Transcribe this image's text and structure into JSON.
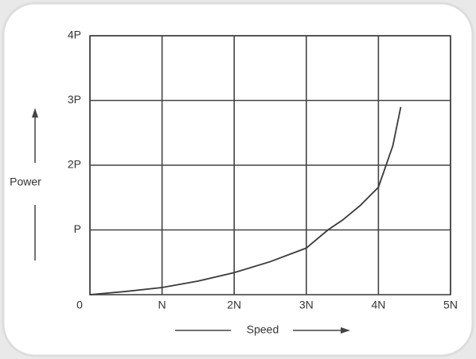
{
  "chart_data": {
    "type": "line",
    "x_label": "Speed",
    "y_label": "Power",
    "x": [
      0,
      0.5,
      1,
      1.5,
      2,
      2.5,
      3,
      3.3,
      3.5,
      3.75,
      4,
      4.2,
      4.31
    ],
    "series": [
      {
        "color": "#3a3a3a",
        "values": [
          0,
          0.05,
          0.11,
          0.21,
          0.34,
          0.51,
          0.72,
          1,
          1.15,
          1.38,
          1.66,
          2.3,
          2.9
        ]
      }
    ],
    "xlim": [
      0,
      5
    ],
    "ylim": [
      0,
      4
    ],
    "xticks": [
      {
        "value": 0,
        "label": "0"
      },
      {
        "value": 1,
        "label": "N"
      },
      {
        "value": 2,
        "label": "2N"
      },
      {
        "value": 3,
        "label": "3N"
      },
      {
        "value": 4,
        "label": "4N"
      },
      {
        "value": 5,
        "label": "5N"
      }
    ],
    "yticks": [
      {
        "value": 1,
        "label": "P"
      },
      {
        "value": 2,
        "label": "2P"
      },
      {
        "value": 3,
        "label": "3P"
      },
      {
        "value": 4,
        "label": "4P"
      }
    ],
    "grid": true
  }
}
